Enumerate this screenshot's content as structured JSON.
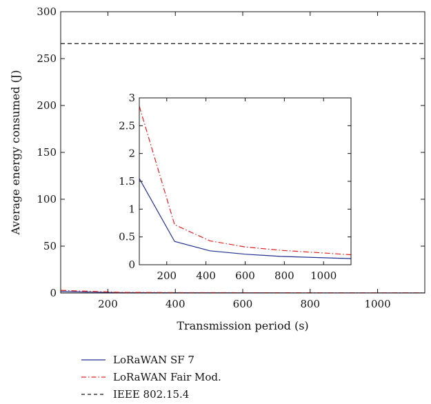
{
  "chart_data": [
    {
      "id": "main",
      "type": "line",
      "xlabel": "Transmission period (s)",
      "ylabel": "Average energy consumed (J)",
      "xlim": [
        60,
        1140
      ],
      "ylim": [
        0,
        300
      ],
      "xticks": [
        200,
        400,
        600,
        800,
        1000
      ],
      "yticks": [
        0,
        50,
        100,
        150,
        200,
        250,
        300
      ],
      "grid": false,
      "legend_position": "bottom-left, outside plot",
      "series": [
        {
          "name": "LoRaWAN SF 7",
          "color": "#1f2f8f",
          "dash": "solid",
          "x": [
            60,
            240,
            420,
            600,
            780,
            960,
            1140
          ],
          "y": [
            1.55,
            0.42,
            0.25,
            0.19,
            0.15,
            0.13,
            0.11
          ]
        },
        {
          "name": "LoRaWAN Fair Mod.",
          "color": "#e02020",
          "dash": "dash-dot",
          "x": [
            60,
            240,
            420,
            600,
            780,
            960,
            1140
          ],
          "y": [
            2.85,
            0.72,
            0.43,
            0.32,
            0.26,
            0.22,
            0.18
          ]
        },
        {
          "name": "IEEE 802.15.4",
          "color": "#111111",
          "dash": "dashed",
          "x": [
            60,
            1140
          ],
          "y": [
            266,
            266
          ]
        }
      ]
    },
    {
      "id": "inset",
      "type": "line",
      "xlim": [
        60,
        1140
      ],
      "ylim": [
        0,
        3
      ],
      "xticks": [
        200,
        400,
        600,
        800,
        1000
      ],
      "yticks": [
        0,
        0.5,
        1,
        1.5,
        2,
        2.5,
        3
      ],
      "ytick_labels": [
        "0",
        "0.5",
        "1",
        "1.5",
        "2",
        "2.5",
        "3"
      ],
      "grid": false,
      "series": [
        {
          "name": "LoRaWAN SF 7",
          "color": "#1f2f8f",
          "dash": "solid",
          "x": [
            60,
            240,
            420,
            600,
            780,
            960,
            1140
          ],
          "y": [
            1.55,
            0.42,
            0.25,
            0.19,
            0.15,
            0.13,
            0.11
          ]
        },
        {
          "name": "LoRaWAN Fair Mod.",
          "color": "#e02020",
          "dash": "dash-dot",
          "x": [
            60,
            240,
            420,
            600,
            780,
            960,
            1140
          ],
          "y": [
            2.85,
            0.72,
            0.43,
            0.32,
            0.26,
            0.22,
            0.18
          ]
        }
      ]
    }
  ]
}
